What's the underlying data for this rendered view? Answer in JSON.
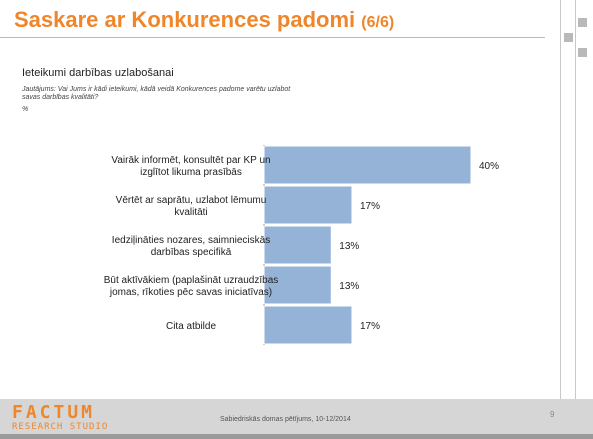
{
  "header": {
    "title": "Saskare ar Konkurences padomi",
    "title_counter": "(6/6)"
  },
  "subtitle": "Ieteikumi darbības uzlabošanai",
  "question": "Jautājums: Vai Jums ir kādi ieteikumi, kādā veidā Konkurences padome varētu uzlabot savas darbības kvalitāti?",
  "percent_note": "%",
  "chart_data": {
    "type": "bar",
    "orientation": "horizontal",
    "categories": [
      "Vairāk informēt, konsultēt par KP un izglītot likuma prasībās",
      "Vērtēt ar saprātu, uzlabot lēmumu kvalitāti",
      "Iedziļināties nozares, saimnieciskās darbības specifikā",
      "Būt aktīvākiem (paplašināt uzraudzības jomas, rīkoties pēc savas iniciatīvas)",
      "Cita atbilde"
    ],
    "values": [
      40,
      17,
      13,
      13,
      17
    ],
    "value_labels": [
      "40%",
      "17%",
      "13%",
      "13%",
      "17%"
    ],
    "xlim": [
      0,
      40
    ],
    "bar_color": "#95b3d7",
    "grid": false
  },
  "footer": {
    "logo_line1": "FACTUM",
    "logo_line2": "RESEARCH STUDIO",
    "text": "Sabiedriskās domas pētījums, 10-12/2014",
    "page": "9"
  },
  "colors": {
    "accent": "#f0862a",
    "bar": "#95b3d7",
    "bar_border": "#ffffff"
  }
}
